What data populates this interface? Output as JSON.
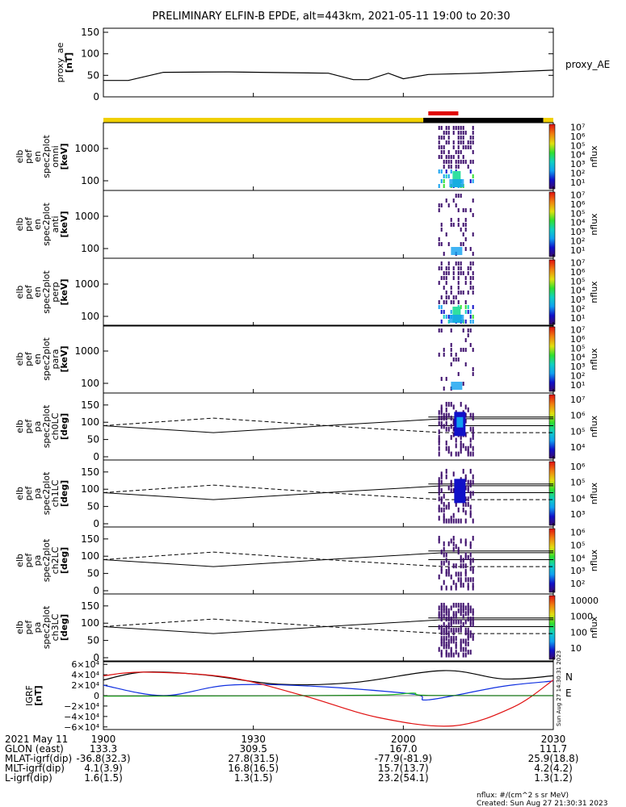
{
  "title": "PRELIMINARY ELFIN-B EPDE, alt=443km, 2021-05-11 19:00 to 20:30",
  "colors": {
    "state_bar_yellow": "#f0d000",
    "state_bar_black": "#000000",
    "science_zone_red": "#e00000",
    "igrf_black": "#000000",
    "igrf_blue": "#1030e0",
    "igrf_red": "#e01010",
    "igrf_green": "#20c020"
  },
  "panels": {
    "ae": {
      "ylabel": [
        "proxy_ae",
        "[nT]"
      ],
      "yticks": [
        "150",
        "100",
        "50",
        "0"
      ],
      "legend": "proxy_AE"
    },
    "spec": [
      {
        "ylabel": [
          "elb",
          "pef",
          "en",
          "spec2plot",
          "omni",
          "[keV]"
        ],
        "yticks": [
          "1000",
          "100"
        ],
        "clabel": "nflux",
        "cticks": [
          "10⁷",
          "10⁶",
          "10⁵",
          "10⁴",
          "10³",
          "10²",
          "10¹"
        ]
      },
      {
        "ylabel": [
          "elb",
          "pef",
          "en",
          "spec2plot",
          "anti",
          "[keV]"
        ],
        "yticks": [
          "1000",
          "100"
        ],
        "clabel": "nflux",
        "cticks": [
          "10⁷",
          "10⁶",
          "10⁵",
          "10⁴",
          "10³",
          "10²",
          "10¹"
        ]
      },
      {
        "ylabel": [
          "elb",
          "pef",
          "en",
          "spec2plot",
          "perp",
          "[keV]"
        ],
        "yticks": [
          "1000",
          "100"
        ],
        "clabel": "nflux",
        "cticks": [
          "10⁷",
          "10⁶",
          "10⁵",
          "10⁴",
          "10³",
          "10²",
          "10¹"
        ]
      },
      {
        "ylabel": [
          "elb",
          "pef",
          "en",
          "spec2plot",
          "para",
          "[keV]"
        ],
        "yticks": [
          "1000",
          "100"
        ],
        "clabel": "nflux",
        "cticks": [
          "10⁷",
          "10⁶",
          "10⁵",
          "10⁴",
          "10³",
          "10²",
          "10¹"
        ]
      }
    ],
    "pa": [
      {
        "ylabel": [
          "elb",
          "pef",
          "pa",
          "spec2plot",
          "ch0LC",
          "[deg]"
        ],
        "yticks": [
          "150",
          "100",
          "50",
          "0"
        ],
        "clabel": "nflux",
        "cticks": [
          "10⁷",
          "10⁶",
          "10⁵",
          "10⁴"
        ]
      },
      {
        "ylabel": [
          "elb",
          "pef",
          "pa",
          "spec2plot",
          "ch1LC",
          "[deg]"
        ],
        "yticks": [
          "150",
          "100",
          "50",
          "0"
        ],
        "clabel": "nflux",
        "cticks": [
          "10⁶",
          "10⁵",
          "10⁴",
          "10³"
        ]
      },
      {
        "ylabel": [
          "elb",
          "pef",
          "pa",
          "spec2plot",
          "ch2LC",
          "[deg]"
        ],
        "yticks": [
          "150",
          "100",
          "50",
          "0"
        ],
        "clabel": "nflux",
        "cticks": [
          "10⁶",
          "10⁵",
          "10⁴",
          "10³",
          "10²"
        ]
      },
      {
        "ylabel": [
          "elb",
          "pef",
          "pa",
          "spec2plot",
          "ch3LC",
          "[deg]"
        ],
        "yticks": [
          "150",
          "100",
          "50",
          "0"
        ],
        "clabel": "nflux",
        "cticks": [
          "10000",
          "1000",
          "100",
          "10"
        ]
      }
    ],
    "igrf": {
      "ylabel": [
        "IGRF",
        "[nT]"
      ],
      "yticks": [
        "6×10⁴",
        "4×10⁴",
        "2×10⁴",
        "0",
        "−2×10⁴",
        "−4×10⁴",
        "−6×10⁴"
      ],
      "legend": [
        "N",
        "E"
      ],
      "stamp": "Sun Aug 27 14:30:31 2023"
    }
  },
  "footer": {
    "rows": [
      {
        "label": "2021 May 11",
        "values": [
          "1900",
          "1930",
          "2000",
          "2030"
        ]
      },
      {
        "label": "GLON (east)",
        "values": [
          "133.3",
          "309.5",
          "167.0",
          "111.7"
        ]
      },
      {
        "label": "MLAT-igrf(dip)",
        "values": [
          "-36.8(32.3)",
          "27.8(31.5)",
          "-77.9(-81.9)",
          "25.9(18.8)"
        ]
      },
      {
        "label": "MLT-igrf(dip)",
        "values": [
          "4.1(3.9)",
          "16.8(16.5)",
          "15.7(13.7)",
          "4.2(4.2)"
        ]
      },
      {
        "label": "L-igrf(dip)",
        "values": [
          "1.6(1.5)",
          "1.3(1.5)",
          "23.2(54.1)",
          "1.3(1.2)"
        ]
      }
    ],
    "nflux_unit": "nflux: #/(cm^2 s sr MeV)",
    "created": "Created: Sun Aug 27 21:30:31 2023"
  },
  "chart_data": {
    "type": "line",
    "x_range_hhmm": [
      "19:00",
      "20:30"
    ],
    "proxy_ae": {
      "x_min": [
        0,
        5,
        12,
        25,
        45,
        50,
        53,
        57,
        60,
        65,
        75,
        90
      ],
      "y": [
        38,
        38,
        57,
        58,
        55,
        40,
        40,
        55,
        42,
        52,
        55,
        62
      ],
      "ylim": [
        0,
        150
      ]
    },
    "science_zone_min": [
      65,
      71
    ],
    "state_bar_min": {
      "yellow": [
        0,
        64
      ],
      "black": [
        64,
        88
      ],
      "yellow2": [
        88,
        90
      ]
    },
    "spec_event_min": [
      67,
      74
    ],
    "igrf_nT": {
      "ylim": [
        -60000,
        60000
      ],
      "series": [
        {
          "name": "black",
          "x_min": [
            0,
            8,
            20,
            35,
            50,
            68,
            80,
            90
          ],
          "y": [
            30000,
            45000,
            40000,
            22000,
            25000,
            48000,
            32000,
            38000
          ]
        },
        {
          "name": "blue",
          "x_min": [
            0,
            12,
            25,
            42,
            62,
            65,
            80,
            90
          ],
          "y": [
            20000,
            0,
            20000,
            18000,
            3000,
            -8000,
            18000,
            28000
          ]
        },
        {
          "name": "red",
          "x_min": [
            0,
            8,
            25,
            40,
            55,
            70,
            82,
            90
          ],
          "y": [
            38000,
            45000,
            35000,
            0,
            -42000,
            -58000,
            -22000,
            30000
          ]
        },
        {
          "name": "green",
          "x_min": [
            0,
            30,
            55,
            62,
            65,
            90
          ],
          "y": [
            -1000,
            -500,
            1000,
            5000,
            500,
            0
          ]
        }
      ]
    }
  }
}
